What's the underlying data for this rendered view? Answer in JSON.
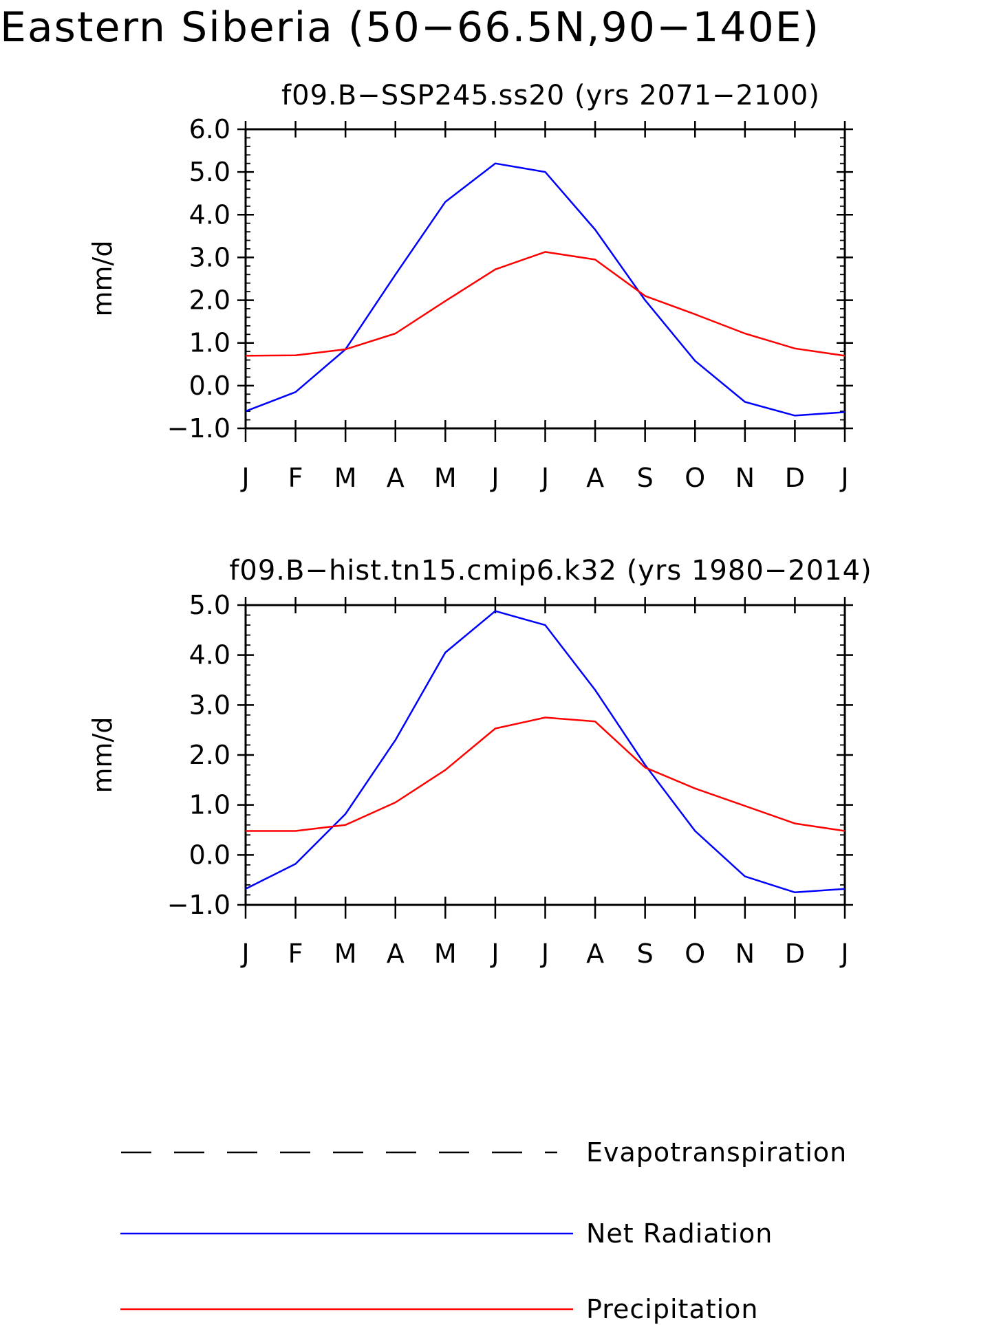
{
  "title": "Eastern Siberia (50−66.5N,90−140E)",
  "legend": [
    {
      "label": "Evapotranspiration",
      "color": "#000000",
      "style": "dashed"
    },
    {
      "label": "Net Radiation",
      "color": "#0000ff",
      "style": "solid"
    },
    {
      "label": "Precipitation",
      "color": "#ff0000",
      "style": "solid"
    }
  ],
  "chart_data": [
    {
      "type": "line",
      "title": "f09.B−SSP245.ss20 (yrs 2071−2100)",
      "ylabel": "mm/d",
      "xlabel": "",
      "categories": [
        "J",
        "F",
        "M",
        "A",
        "M",
        "J",
        "J",
        "A",
        "S",
        "O",
        "N",
        "D",
        "J"
      ],
      "ylim": [
        -1.0,
        6.0
      ],
      "yticks": [
        "−1.0",
        "0.0",
        "1.0",
        "2.0",
        "3.0",
        "4.0",
        "5.0",
        "6.0"
      ],
      "grid": false,
      "series": [
        {
          "name": "Net Radiation",
          "color": "#0000ff",
          "values": [
            -0.6,
            -0.15,
            0.85,
            2.6,
            4.3,
            5.2,
            5.0,
            3.65,
            2.0,
            0.58,
            -0.38,
            -0.7,
            -0.62
          ]
        },
        {
          "name": "Precipitation",
          "color": "#ff0000",
          "values": [
            0.7,
            0.71,
            0.85,
            1.22,
            1.98,
            2.72,
            3.13,
            2.95,
            2.1,
            1.67,
            1.22,
            0.87,
            0.7
          ]
        }
      ]
    },
    {
      "type": "line",
      "title": "f09.B−hist.tn15.cmip6.k32 (yrs 1980−2014)",
      "ylabel": "mm/d",
      "xlabel": "",
      "categories": [
        "J",
        "F",
        "M",
        "A",
        "M",
        "J",
        "J",
        "A",
        "S",
        "O",
        "N",
        "D",
        "J"
      ],
      "ylim": [
        -1.0,
        5.0
      ],
      "yticks": [
        "−1.0",
        "0.0",
        "1.0",
        "2.0",
        "3.0",
        "4.0",
        "5.0"
      ],
      "grid": false,
      "series": [
        {
          "name": "Net Radiation",
          "color": "#0000ff",
          "values": [
            -0.68,
            -0.18,
            0.82,
            2.3,
            4.05,
            4.88,
            4.6,
            3.3,
            1.8,
            0.48,
            -0.43,
            -0.75,
            -0.68
          ]
        },
        {
          "name": "Precipitation",
          "color": "#ff0000",
          "values": [
            0.48,
            0.48,
            0.6,
            1.05,
            1.7,
            2.53,
            2.75,
            2.67,
            1.75,
            1.33,
            0.98,
            0.63,
            0.48
          ]
        }
      ]
    }
  ]
}
